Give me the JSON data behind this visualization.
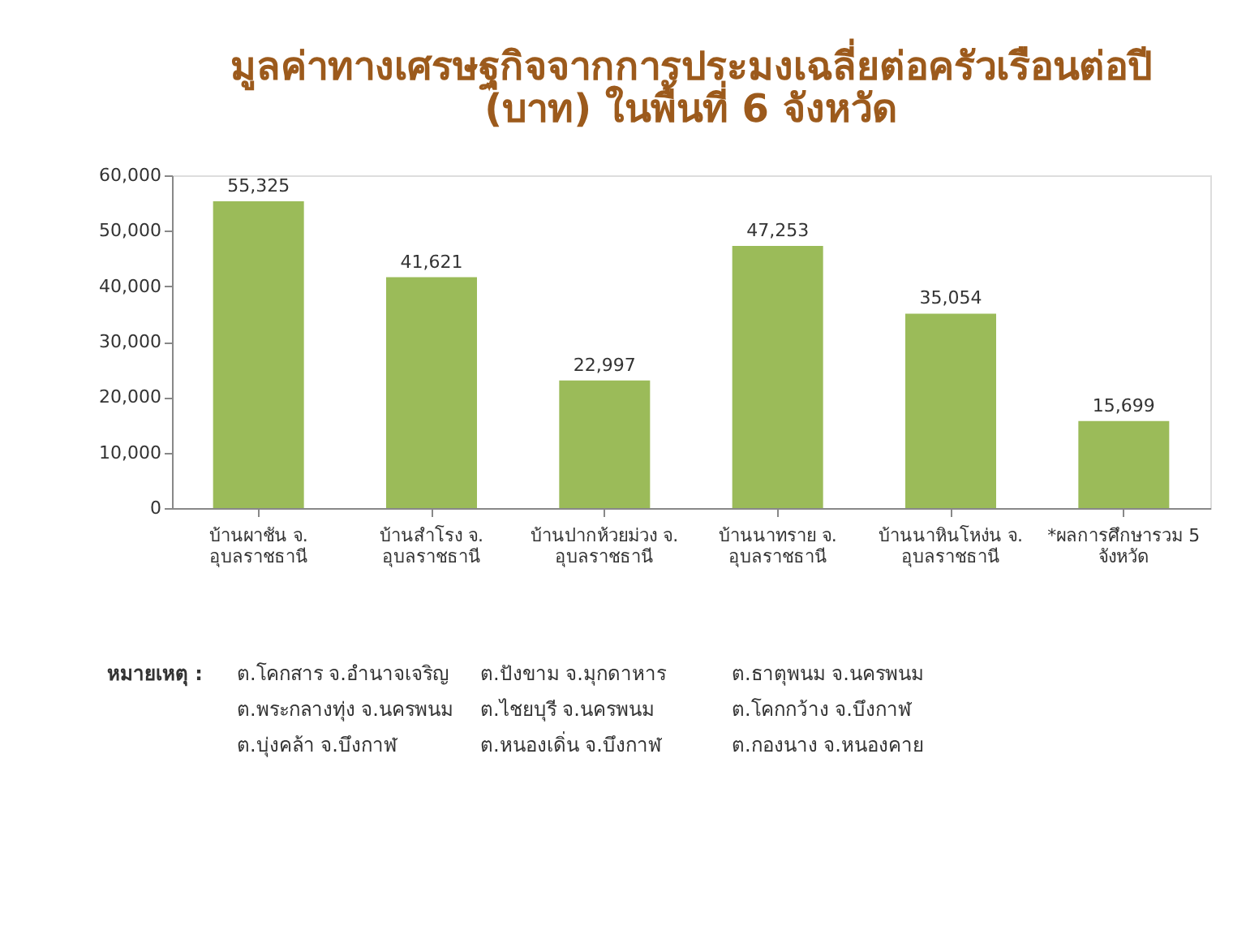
{
  "chart_data": {
    "type": "bar",
    "title": "มูลค่าทางเศรษฐกิจจากการประมงเฉลี่ยต่อครัวเรือนต่อปี\n(บาท) ในพื้นที่ 6 จังหวัด",
    "categories": [
      "บ้านผาชัน จ.\nอุบลราชธานี",
      "บ้านสำโรง จ.\nอุบลราชธานี",
      "บ้านปากห้วยม่วง จ.\nอุบลราชธานี",
      "บ้านนาทราย จ.\nอุบลราชธานี",
      "บ้านนาหินโหง่น จ.\nอุบลราชธานี",
      "*ผลการศึกษารวม 5\nจังหวัด"
    ],
    "values": [
      55325,
      41621,
      22997,
      47253,
      35054,
      15699
    ],
    "color": "#9bbb59",
    "ylim": [
      0,
      60000
    ],
    "yticks": [
      {
        "value": 0,
        "label": "0"
      },
      {
        "value": 10000,
        "label": "10,000"
      },
      {
        "value": 20000,
        "label": "20,000"
      },
      {
        "value": 30000,
        "label": "30,000"
      },
      {
        "value": 40000,
        "label": "40,000"
      },
      {
        "value": 50000,
        "label": "50,000"
      },
      {
        "value": 60000,
        "label": "60,000"
      }
    ],
    "value_labels": [
      "55,325",
      "41,621",
      "22,997",
      "47,253",
      "35,054",
      "15,699"
    ],
    "grid": false,
    "annotations": [
      "หมายเหตุ :",
      "ต.โคกสาร จ.อำนาจเจริญ",
      "ต.ปังขาม จ.มุกดาหาร",
      "ต.ธาตุพนม จ.นครพนม",
      "ต.พระกลางทุ่ง จ.นครพนม",
      "ต.ไชยบุรี จ.นครพนม",
      "ต.โคกกว้าง จ.บึงกาฬ",
      "ต.บุ่งคล้า จ.บึงกาฬ",
      "ต.หนองเดิ่น จ.บึงกาฬ",
      "ต.กองนาง จ.หนองคาย"
    ]
  }
}
